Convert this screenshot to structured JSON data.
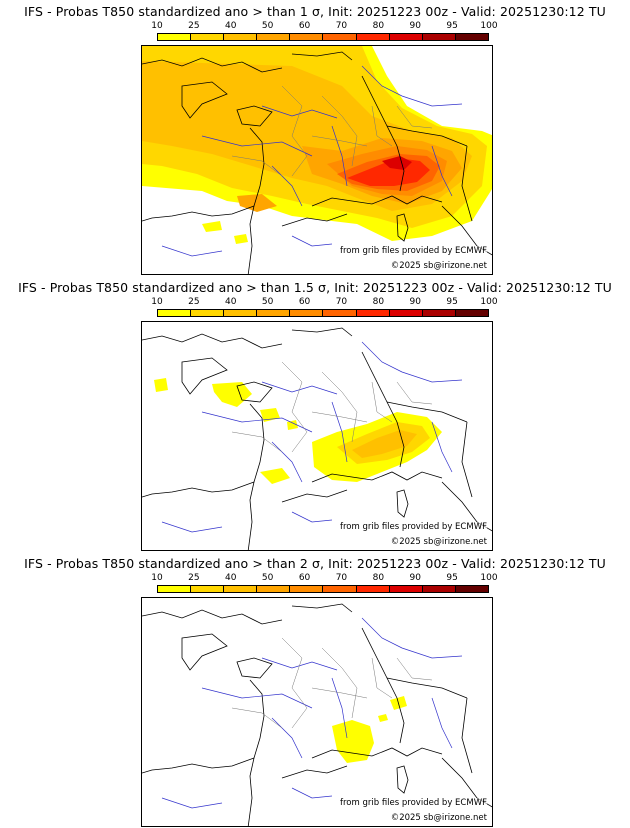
{
  "colorbar": {
    "labels": [
      "10",
      "25",
      "40",
      "50",
      "60",
      "70",
      "80",
      "90",
      "95",
      "100"
    ],
    "colors": [
      "#ffff00",
      "#ffd700",
      "#ffc000",
      "#ffa500",
      "#ff8c00",
      "#ff6400",
      "#ff2800",
      "#dc0000",
      "#aa0000",
      "#640000"
    ]
  },
  "panels": [
    {
      "title": "IFS - Probas T850  standardized ano > than 1 σ, Init: 20251223 00z - Valid: 20251230:12 TU"
    },
    {
      "title": "IFS - Probas T850  standardized ano > than 1.5 σ, Init: 20251223 00z - Valid: 20251230:12 TU"
    },
    {
      "title": "IFS - Probas T850  standardized ano > than 2 σ, Init: 20251223 00z - Valid: 20251230:12 TU"
    }
  ],
  "credits": {
    "source": "from grib files provided by ECMWF",
    "copyright": "©2025 sb@irizone.net"
  }
}
